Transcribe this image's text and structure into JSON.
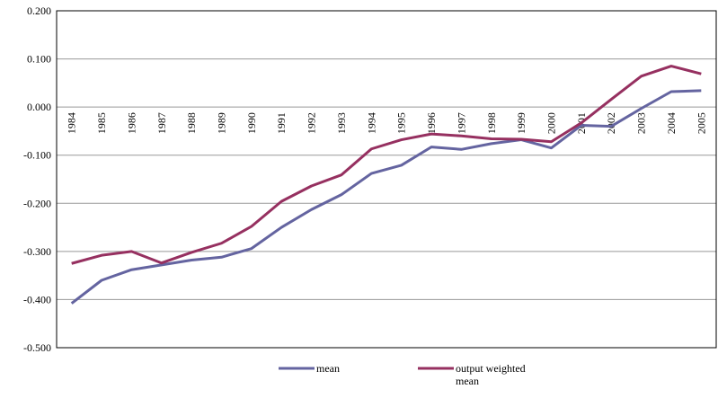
{
  "chart_data": {
    "type": "line",
    "categories": [
      "1984",
      "1985",
      "1986",
      "1987",
      "1988",
      "1989",
      "1990",
      "1991",
      "1992",
      "1993",
      "1994",
      "1995",
      "1996",
      "1997",
      "1998",
      "1999",
      "2000",
      "2001",
      "2002",
      "2003",
      "2004",
      "2005"
    ],
    "series": [
      {
        "name": "mean",
        "color": "#6464a0",
        "values": [
          -0.408,
          -0.36,
          -0.338,
          -0.328,
          -0.318,
          -0.312,
          -0.294,
          -0.25,
          -0.213,
          -0.182,
          -0.138,
          -0.121,
          -0.083,
          -0.088,
          -0.076,
          -0.068,
          -0.085,
          -0.038,
          -0.04,
          -0.003,
          0.032,
          0.034
        ]
      },
      {
        "name": "output weighted mean",
        "color": "#963060",
        "values": [
          -0.325,
          -0.308,
          -0.3,
          -0.324,
          -0.302,
          -0.283,
          -0.248,
          -0.196,
          -0.164,
          -0.141,
          -0.087,
          -0.068,
          -0.056,
          -0.06,
          -0.066,
          -0.067,
          -0.072,
          -0.033,
          0.016,
          0.064,
          0.085,
          0.069
        ]
      }
    ],
    "ylim": [
      -0.5,
      0.2
    ],
    "yticks": [
      {
        "value": -0.5,
        "label": "-0.500"
      },
      {
        "value": -0.4,
        "label": "-0.400"
      },
      {
        "value": -0.3,
        "label": "-0.300"
      },
      {
        "value": -0.2,
        "label": "-0.200"
      },
      {
        "value": -0.1,
        "label": "-0.100"
      },
      {
        "value": 0,
        "label": "0.000"
      },
      {
        "value": 0.1,
        "label": "0.100"
      },
      {
        "value": 0.2,
        "label": "0.200"
      }
    ],
    "grid": true,
    "legend": "bottom"
  }
}
